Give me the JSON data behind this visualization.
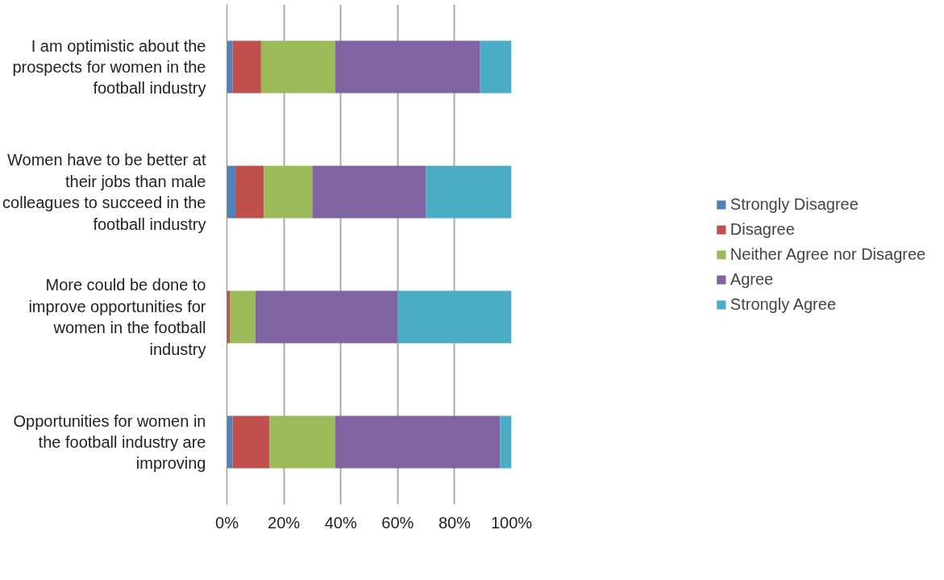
{
  "chart_data": {
    "type": "bar",
    "orientation": "horizontal",
    "stacked": true,
    "categories": [
      "I am optimistic about the prospects for women in the football industry",
      "Women have to be better at their jobs than male colleagues to succeed in the football industry",
      "More could be done to improve opportunities for women in the football industry",
      "Opportunities for women in the football industry are improving"
    ],
    "series": [
      {
        "name": "Strongly Disagree",
        "color": "#4f81bd",
        "values": [
          2,
          3,
          0,
          2
        ]
      },
      {
        "name": "Disagree",
        "color": "#c0504d",
        "values": [
          10,
          10,
          1,
          13
        ]
      },
      {
        "name": "Neither Agree nor Disagree",
        "color": "#9bbb59",
        "values": [
          26,
          17,
          9,
          23
        ]
      },
      {
        "name": "Agree",
        "color": "#8064a2",
        "values": [
          51,
          40,
          50,
          58
        ]
      },
      {
        "name": "Strongly Agree",
        "color": "#4bacc6",
        "values": [
          11,
          30,
          40,
          4
        ]
      }
    ],
    "xlim": [
      0,
      100
    ],
    "xticks": [
      {
        "value": 0,
        "label": "0%"
      },
      {
        "value": 20,
        "label": "20%"
      },
      {
        "value": 40,
        "label": "40%"
      },
      {
        "value": 60,
        "label": "60%"
      },
      {
        "value": 80,
        "label": "80%"
      },
      {
        "value": 100,
        "label": "100%"
      }
    ],
    "grid": "x",
    "legend": "right"
  }
}
